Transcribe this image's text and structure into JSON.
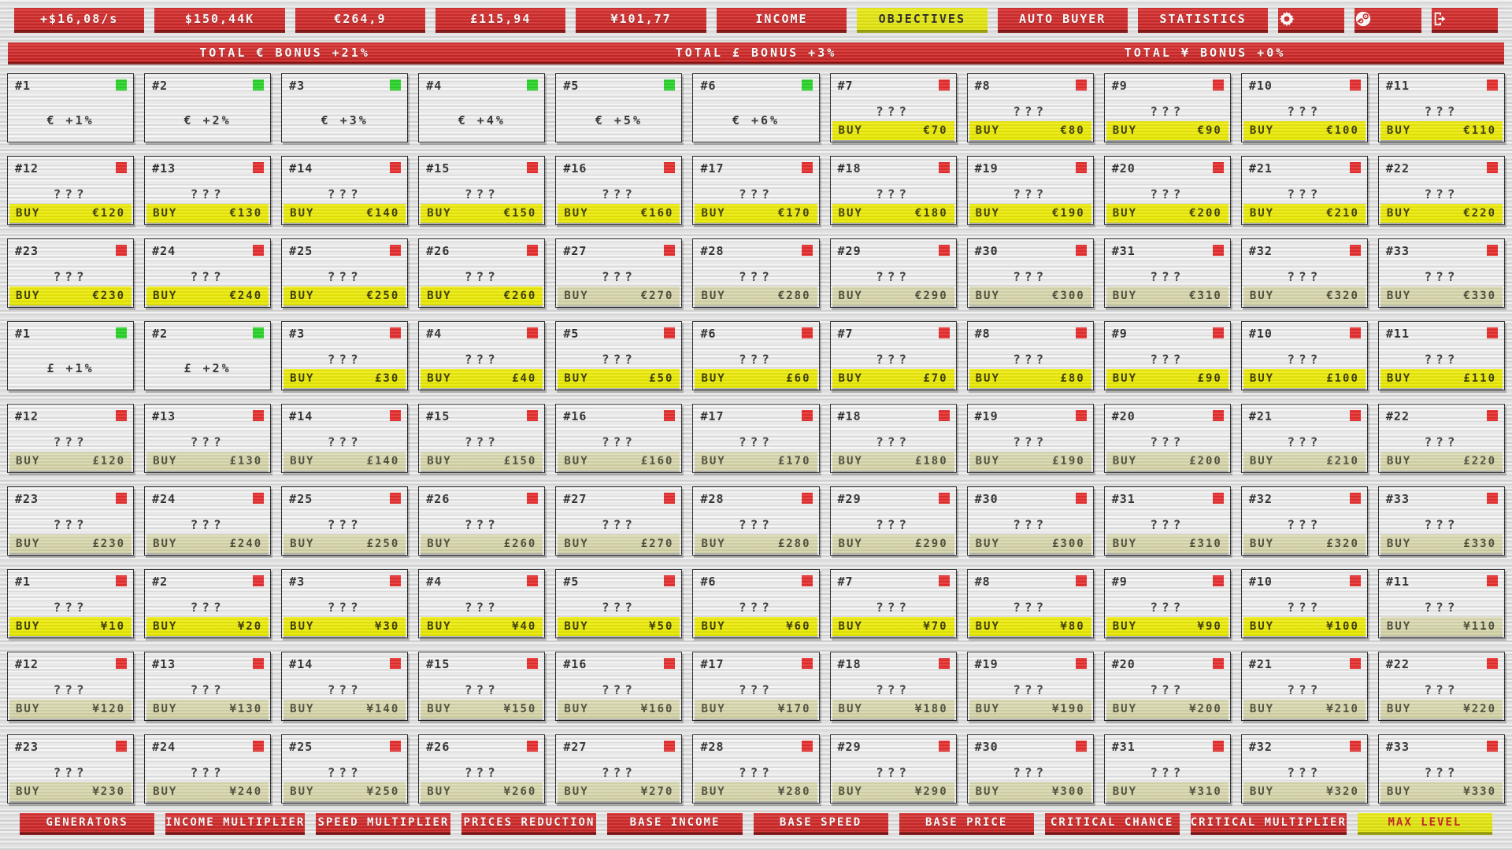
{
  "topbar": {
    "stats": [
      {
        "id": "income-rate",
        "label": "+$16,08/s"
      },
      {
        "id": "dollars",
        "label": "$150,44K"
      },
      {
        "id": "euros",
        "label": "€264,9"
      },
      {
        "id": "pounds",
        "label": "£115,94"
      },
      {
        "id": "yen",
        "label": "¥101,77"
      }
    ],
    "tabs": [
      {
        "id": "income",
        "label": "INCOME",
        "active": false
      },
      {
        "id": "objectives",
        "label": "OBJECTIVES",
        "active": true
      },
      {
        "id": "auto-buyer",
        "label": "AUTO BUYER",
        "active": false
      },
      {
        "id": "statistics",
        "label": "STATISTICS",
        "active": false
      }
    ],
    "icon_buttons": [
      {
        "id": "settings",
        "icon": "gear-icon"
      },
      {
        "id": "steam",
        "icon": "steam-icon"
      },
      {
        "id": "exit",
        "icon": "exit-icon"
      }
    ]
  },
  "bonus_bar": [
    "TOTAL € BONUS +21%",
    "TOTAL £ BONUS +3%",
    "TOTAL ¥ BONUS +0%"
  ],
  "labels": {
    "buy": "BUY",
    "locked": "???"
  },
  "colors": {
    "accent_red": "#cc2a2a",
    "accent_yellow": "#e5e712",
    "buy_affordable": "#ece90f",
    "buy_unaffordable": "#d8d7ae",
    "owned_square": "#2bd42b",
    "locked_square": "#e62f2f"
  },
  "cards": [
    {
      "n": "#1",
      "state": "owned",
      "bonus": "€ +1%"
    },
    {
      "n": "#2",
      "state": "owned",
      "bonus": "€ +2%"
    },
    {
      "n": "#3",
      "state": "owned",
      "bonus": "€ +3%"
    },
    {
      "n": "#4",
      "state": "owned",
      "bonus": "€ +4%"
    },
    {
      "n": "#5",
      "state": "owned",
      "bonus": "€ +5%"
    },
    {
      "n": "#6",
      "state": "owned",
      "bonus": "€ +6%"
    },
    {
      "n": "#7",
      "state": "locked",
      "price": "€70",
      "afford": true
    },
    {
      "n": "#8",
      "state": "locked",
      "price": "€80",
      "afford": true
    },
    {
      "n": "#9",
      "state": "locked",
      "price": "€90",
      "afford": true
    },
    {
      "n": "#10",
      "state": "locked",
      "price": "€100",
      "afford": true
    },
    {
      "n": "#11",
      "state": "locked",
      "price": "€110",
      "afford": true
    },
    {
      "n": "#12",
      "state": "locked",
      "price": "€120",
      "afford": true
    },
    {
      "n": "#13",
      "state": "locked",
      "price": "€130",
      "afford": true
    },
    {
      "n": "#14",
      "state": "locked",
      "price": "€140",
      "afford": true
    },
    {
      "n": "#15",
      "state": "locked",
      "price": "€150",
      "afford": true
    },
    {
      "n": "#16",
      "state": "locked",
      "price": "€160",
      "afford": true
    },
    {
      "n": "#17",
      "state": "locked",
      "price": "€170",
      "afford": true
    },
    {
      "n": "#18",
      "state": "locked",
      "price": "€180",
      "afford": true
    },
    {
      "n": "#19",
      "state": "locked",
      "price": "€190",
      "afford": true
    },
    {
      "n": "#20",
      "state": "locked",
      "price": "€200",
      "afford": true
    },
    {
      "n": "#21",
      "state": "locked",
      "price": "€210",
      "afford": true
    },
    {
      "n": "#22",
      "state": "locked",
      "price": "€220",
      "afford": true
    },
    {
      "n": "#23",
      "state": "locked",
      "price": "€230",
      "afford": true
    },
    {
      "n": "#24",
      "state": "locked",
      "price": "€240",
      "afford": true
    },
    {
      "n": "#25",
      "state": "locked",
      "price": "€250",
      "afford": true
    },
    {
      "n": "#26",
      "state": "locked",
      "price": "€260",
      "afford": true
    },
    {
      "n": "#27",
      "state": "locked",
      "price": "€270",
      "afford": false
    },
    {
      "n": "#28",
      "state": "locked",
      "price": "€280",
      "afford": false
    },
    {
      "n": "#29",
      "state": "locked",
      "price": "€290",
      "afford": false
    },
    {
      "n": "#30",
      "state": "locked",
      "price": "€300",
      "afford": false
    },
    {
      "n": "#31",
      "state": "locked",
      "price": "€310",
      "afford": false
    },
    {
      "n": "#32",
      "state": "locked",
      "price": "€320",
      "afford": false
    },
    {
      "n": "#33",
      "state": "locked",
      "price": "€330",
      "afford": false
    },
    {
      "n": "#1",
      "state": "owned",
      "bonus": "£ +1%"
    },
    {
      "n": "#2",
      "state": "owned",
      "bonus": "£ +2%"
    },
    {
      "n": "#3",
      "state": "locked",
      "price": "£30",
      "afford": true
    },
    {
      "n": "#4",
      "state": "locked",
      "price": "£40",
      "afford": true
    },
    {
      "n": "#5",
      "state": "locked",
      "price": "£50",
      "afford": true
    },
    {
      "n": "#6",
      "state": "locked",
      "price": "£60",
      "afford": true
    },
    {
      "n": "#7",
      "state": "locked",
      "price": "£70",
      "afford": true
    },
    {
      "n": "#8",
      "state": "locked",
      "price": "£80",
      "afford": true
    },
    {
      "n": "#9",
      "state": "locked",
      "price": "£90",
      "afford": true
    },
    {
      "n": "#10",
      "state": "locked",
      "price": "£100",
      "afford": true
    },
    {
      "n": "#11",
      "state": "locked",
      "price": "£110",
      "afford": true
    },
    {
      "n": "#12",
      "state": "locked",
      "price": "£120",
      "afford": false
    },
    {
      "n": "#13",
      "state": "locked",
      "price": "£130",
      "afford": false
    },
    {
      "n": "#14",
      "state": "locked",
      "price": "£140",
      "afford": false
    },
    {
      "n": "#15",
      "state": "locked",
      "price": "£150",
      "afford": false
    },
    {
      "n": "#16",
      "state": "locked",
      "price": "£160",
      "afford": false
    },
    {
      "n": "#17",
      "state": "locked",
      "price": "£170",
      "afford": false
    },
    {
      "n": "#18",
      "state": "locked",
      "price": "£180",
      "afford": false
    },
    {
      "n": "#19",
      "state": "locked",
      "price": "£190",
      "afford": false
    },
    {
      "n": "#20",
      "state": "locked",
      "price": "£200",
      "afford": false
    },
    {
      "n": "#21",
      "state": "locked",
      "price": "£210",
      "afford": false
    },
    {
      "n": "#22",
      "state": "locked",
      "price": "£220",
      "afford": false
    },
    {
      "n": "#23",
      "state": "locked",
      "price": "£230",
      "afford": false
    },
    {
      "n": "#24",
      "state": "locked",
      "price": "£240",
      "afford": false
    },
    {
      "n": "#25",
      "state": "locked",
      "price": "£250",
      "afford": false
    },
    {
      "n": "#26",
      "state": "locked",
      "price": "£260",
      "afford": false
    },
    {
      "n": "#27",
      "state": "locked",
      "price": "£270",
      "afford": false
    },
    {
      "n": "#28",
      "state": "locked",
      "price": "£280",
      "afford": false
    },
    {
      "n": "#29",
      "state": "locked",
      "price": "£290",
      "afford": false
    },
    {
      "n": "#30",
      "state": "locked",
      "price": "£300",
      "afford": false
    },
    {
      "n": "#31",
      "state": "locked",
      "price": "£310",
      "afford": false
    },
    {
      "n": "#32",
      "state": "locked",
      "price": "£320",
      "afford": false
    },
    {
      "n": "#33",
      "state": "locked",
      "price": "£330",
      "afford": false
    },
    {
      "n": "#1",
      "state": "locked",
      "price": "¥10",
      "afford": true
    },
    {
      "n": "#2",
      "state": "locked",
      "price": "¥20",
      "afford": true
    },
    {
      "n": "#3",
      "state": "locked",
      "price": "¥30",
      "afford": true
    },
    {
      "n": "#4",
      "state": "locked",
      "price": "¥40",
      "afford": true
    },
    {
      "n": "#5",
      "state": "locked",
      "price": "¥50",
      "afford": true
    },
    {
      "n": "#6",
      "state": "locked",
      "price": "¥60",
      "afford": true
    },
    {
      "n": "#7",
      "state": "locked",
      "price": "¥70",
      "afford": true
    },
    {
      "n": "#8",
      "state": "locked",
      "price": "¥80",
      "afford": true
    },
    {
      "n": "#9",
      "state": "locked",
      "price": "¥90",
      "afford": true
    },
    {
      "n": "#10",
      "state": "locked",
      "price": "¥100",
      "afford": true
    },
    {
      "n": "#11",
      "state": "locked",
      "price": "¥110",
      "afford": false
    },
    {
      "n": "#12",
      "state": "locked",
      "price": "¥120",
      "afford": false
    },
    {
      "n": "#13",
      "state": "locked",
      "price": "¥130",
      "afford": false
    },
    {
      "n": "#14",
      "state": "locked",
      "price": "¥140",
      "afford": false
    },
    {
      "n": "#15",
      "state": "locked",
      "price": "¥150",
      "afford": false
    },
    {
      "n": "#16",
      "state": "locked",
      "price": "¥160",
      "afford": false
    },
    {
      "n": "#17",
      "state": "locked",
      "price": "¥170",
      "afford": false
    },
    {
      "n": "#18",
      "state": "locked",
      "price": "¥180",
      "afford": false
    },
    {
      "n": "#19",
      "state": "locked",
      "price": "¥190",
      "afford": false
    },
    {
      "n": "#20",
      "state": "locked",
      "price": "¥200",
      "afford": false
    },
    {
      "n": "#21",
      "state": "locked",
      "price": "¥210",
      "afford": false
    },
    {
      "n": "#22",
      "state": "locked",
      "price": "¥220",
      "afford": false
    },
    {
      "n": "#23",
      "state": "locked",
      "price": "¥230",
      "afford": false
    },
    {
      "n": "#24",
      "state": "locked",
      "price": "¥240",
      "afford": false
    },
    {
      "n": "#25",
      "state": "locked",
      "price": "¥250",
      "afford": false
    },
    {
      "n": "#26",
      "state": "locked",
      "price": "¥260",
      "afford": false
    },
    {
      "n": "#27",
      "state": "locked",
      "price": "¥270",
      "afford": false
    },
    {
      "n": "#28",
      "state": "locked",
      "price": "¥280",
      "afford": false
    },
    {
      "n": "#29",
      "state": "locked",
      "price": "¥290",
      "afford": false
    },
    {
      "n": "#30",
      "state": "locked",
      "price": "¥300",
      "afford": false
    },
    {
      "n": "#31",
      "state": "locked",
      "price": "¥310",
      "afford": false
    },
    {
      "n": "#32",
      "state": "locked",
      "price": "¥320",
      "afford": false
    },
    {
      "n": "#33",
      "state": "locked",
      "price": "¥330",
      "afford": false
    }
  ],
  "bottom_nav": [
    {
      "label": "GENERATORS",
      "active": false
    },
    {
      "label": "INCOME MULTIPLIER",
      "active": false
    },
    {
      "label": "SPEED MULTIPLIER",
      "active": false
    },
    {
      "label": "PRICES REDUCTION",
      "active": false
    },
    {
      "label": "BASE INCOME",
      "active": false
    },
    {
      "label": "BASE SPEED",
      "active": false
    },
    {
      "label": "BASE PRICE",
      "active": false
    },
    {
      "label": "CRITICAL CHANCE",
      "active": false
    },
    {
      "label": "CRITICAL MULTIPLIER",
      "active": false
    },
    {
      "label": "MAX LEVEL",
      "active": true
    }
  ]
}
